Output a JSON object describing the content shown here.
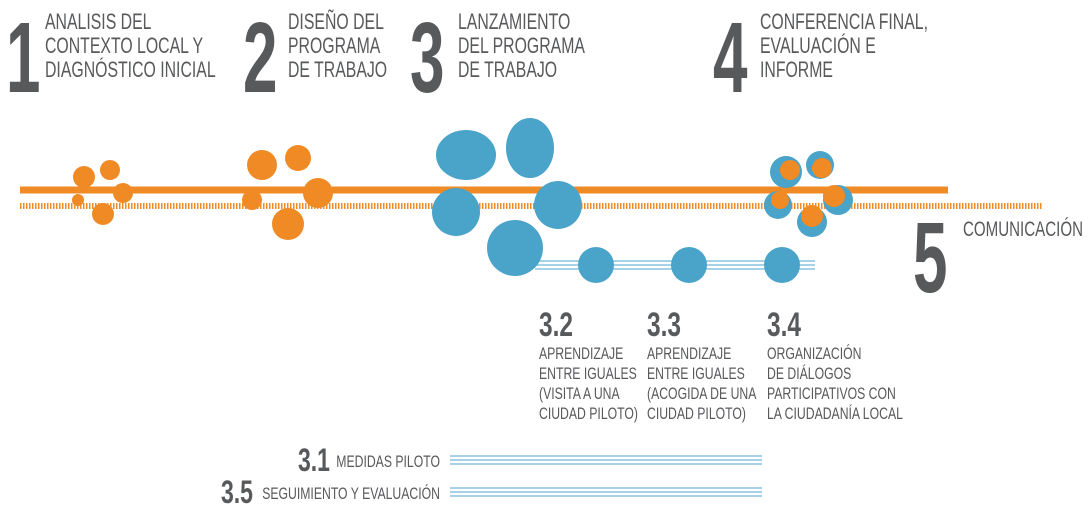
{
  "phases": [
    {
      "number": "1",
      "lines": [
        "ANALISIS DEL",
        "CONTEXTO LOCAL Y",
        "DIAGNÓSTICO INICIAL"
      ]
    },
    {
      "number": "2",
      "lines": [
        "DISEÑO DEL",
        "PROGRAMA",
        "DE TRABAJO"
      ]
    },
    {
      "number": "3",
      "lines": [
        "LANZAMIENTO",
        "DEL PROGRAMA",
        "DE TRABAJO"
      ]
    },
    {
      "number": "4",
      "lines": [
        "CONFERENCIA FINAL,",
        "EVALUACIÓN E",
        "INFORME"
      ]
    },
    {
      "number": "5",
      "lines": [
        "COMUNICACIÓN"
      ]
    }
  ],
  "subphases": [
    {
      "number": "3.2",
      "lines": [
        "APRENDIZAJE",
        "ENTRE IGUALES",
        "(VISITA A UNA",
        "CIUDAD PILOTO)"
      ]
    },
    {
      "number": "3.3",
      "lines": [
        "APRENDIZAJE",
        "ENTRE IGUALES",
        "(ACOGIDA DE UNA",
        "CIUDAD PILOTO)"
      ]
    },
    {
      "number": "3.4",
      "lines": [
        "ORGANIZACIÓN",
        "DE DIÁLOGOS",
        "PARTICIPATIVOS CON",
        "LA CIUDADANÍA LOCAL"
      ]
    }
  ],
  "tracks": [
    {
      "number": "3.1",
      "label": "MEDIDAS PILOTO"
    },
    {
      "number": "3.5",
      "label": "SEGUIMIENTO Y EVALUACIÓN"
    }
  ]
}
